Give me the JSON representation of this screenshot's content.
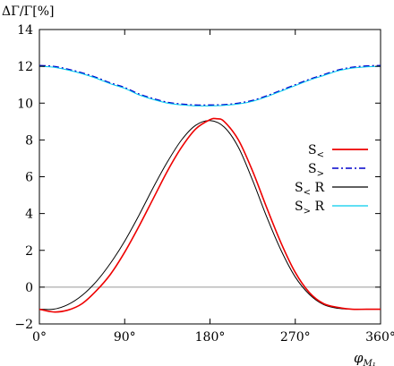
{
  "chart_data": {
    "type": "line",
    "ylabel": "ΔΓ/Γ[%]",
    "xlabel": "φ",
    "xlabel_sub": "M₁",
    "xlim": [
      0,
      360
    ],
    "ylim": [
      -2,
      14
    ],
    "grid": false,
    "legend_position": "right",
    "xticks": [
      {
        "value": 0,
        "label": "0°"
      },
      {
        "value": 90,
        "label": "90°"
      },
      {
        "value": 180,
        "label": "180°"
      },
      {
        "value": 270,
        "label": "270°"
      },
      {
        "value": 360,
        "label": "360°"
      }
    ],
    "yticks": [
      {
        "value": -2,
        "label": "−2"
      },
      {
        "value": 0,
        "label": "0"
      },
      {
        "value": 2,
        "label": "2"
      },
      {
        "value": 4,
        "label": "4"
      },
      {
        "value": 6,
        "label": "6"
      },
      {
        "value": 8,
        "label": "8"
      },
      {
        "value": 10,
        "label": "10"
      },
      {
        "value": 12,
        "label": "12"
      },
      {
        "value": 14,
        "label": "14"
      }
    ],
    "reference_line": {
      "y": 0,
      "color": "#999999"
    },
    "series": [
      {
        "name": "S<",
        "name_main": "S",
        "name_sub": "<",
        "name_suffix": "",
        "color": "#ee0000",
        "dash": "solid",
        "width": 1.6,
        "x": [
          0,
          15,
          30,
          45,
          60,
          75,
          90,
          105,
          120,
          135,
          150,
          165,
          180,
          187,
          195,
          210,
          225,
          240,
          255,
          270,
          285,
          300,
          315,
          330,
          345,
          360
        ],
        "y": [
          -1.2,
          -1.35,
          -1.25,
          -0.9,
          -0.2,
          0.7,
          1.9,
          3.3,
          4.8,
          6.3,
          7.6,
          8.6,
          9.1,
          9.15,
          9.0,
          8.0,
          6.3,
          4.3,
          2.4,
          0.8,
          -0.3,
          -0.9,
          -1.1,
          -1.2,
          -1.2,
          -1.2
        ]
      },
      {
        "name": "S>",
        "name_main": "S",
        "name_sub": ">",
        "name_suffix": "",
        "color": "#0000cc",
        "dash": "dashdot",
        "width": 1.3,
        "x": [
          0,
          15,
          30,
          45,
          60,
          75,
          90,
          105,
          120,
          135,
          150,
          165,
          180,
          195,
          210,
          225,
          240,
          255,
          270,
          285,
          300,
          315,
          330,
          345,
          360
        ],
        "y": [
          12.05,
          12.0,
          11.85,
          11.65,
          11.4,
          11.1,
          10.85,
          10.5,
          10.25,
          10.05,
          9.95,
          9.9,
          9.9,
          9.92,
          10.0,
          10.15,
          10.4,
          10.7,
          11.0,
          11.3,
          11.55,
          11.8,
          11.95,
          12.02,
          12.05
        ]
      },
      {
        "name": "S< R",
        "name_main": "S",
        "name_sub": "<",
        "name_suffix": " R",
        "color": "#000000",
        "dash": "solid",
        "width": 1.0,
        "x": [
          0,
          15,
          30,
          45,
          60,
          75,
          90,
          105,
          120,
          135,
          150,
          165,
          180,
          195,
          210,
          225,
          240,
          255,
          270,
          285,
          300,
          315,
          330,
          345,
          360
        ],
        "y": [
          -1.2,
          -1.2,
          -0.95,
          -0.45,
          0.3,
          1.3,
          2.5,
          3.9,
          5.4,
          6.8,
          8.0,
          8.8,
          9.05,
          8.7,
          7.6,
          5.8,
          3.8,
          2.0,
          0.55,
          -0.4,
          -0.95,
          -1.15,
          -1.2,
          -1.2,
          -1.2
        ]
      },
      {
        "name": "S> R",
        "name_main": "S",
        "name_sub": ">",
        "name_suffix": " R",
        "color": "#00ccee",
        "dash": "solid",
        "width": 1.0,
        "x": [
          0,
          15,
          30,
          45,
          60,
          75,
          90,
          105,
          120,
          135,
          150,
          165,
          180,
          195,
          210,
          225,
          240,
          255,
          270,
          285,
          300,
          315,
          330,
          345,
          360
        ],
        "y": [
          12.0,
          11.95,
          11.8,
          11.6,
          11.35,
          11.05,
          10.8,
          10.45,
          10.2,
          10.0,
          9.9,
          9.85,
          9.85,
          9.88,
          9.95,
          10.1,
          10.35,
          10.65,
          10.95,
          11.25,
          11.5,
          11.75,
          11.9,
          11.97,
          12.0
        ]
      }
    ]
  }
}
